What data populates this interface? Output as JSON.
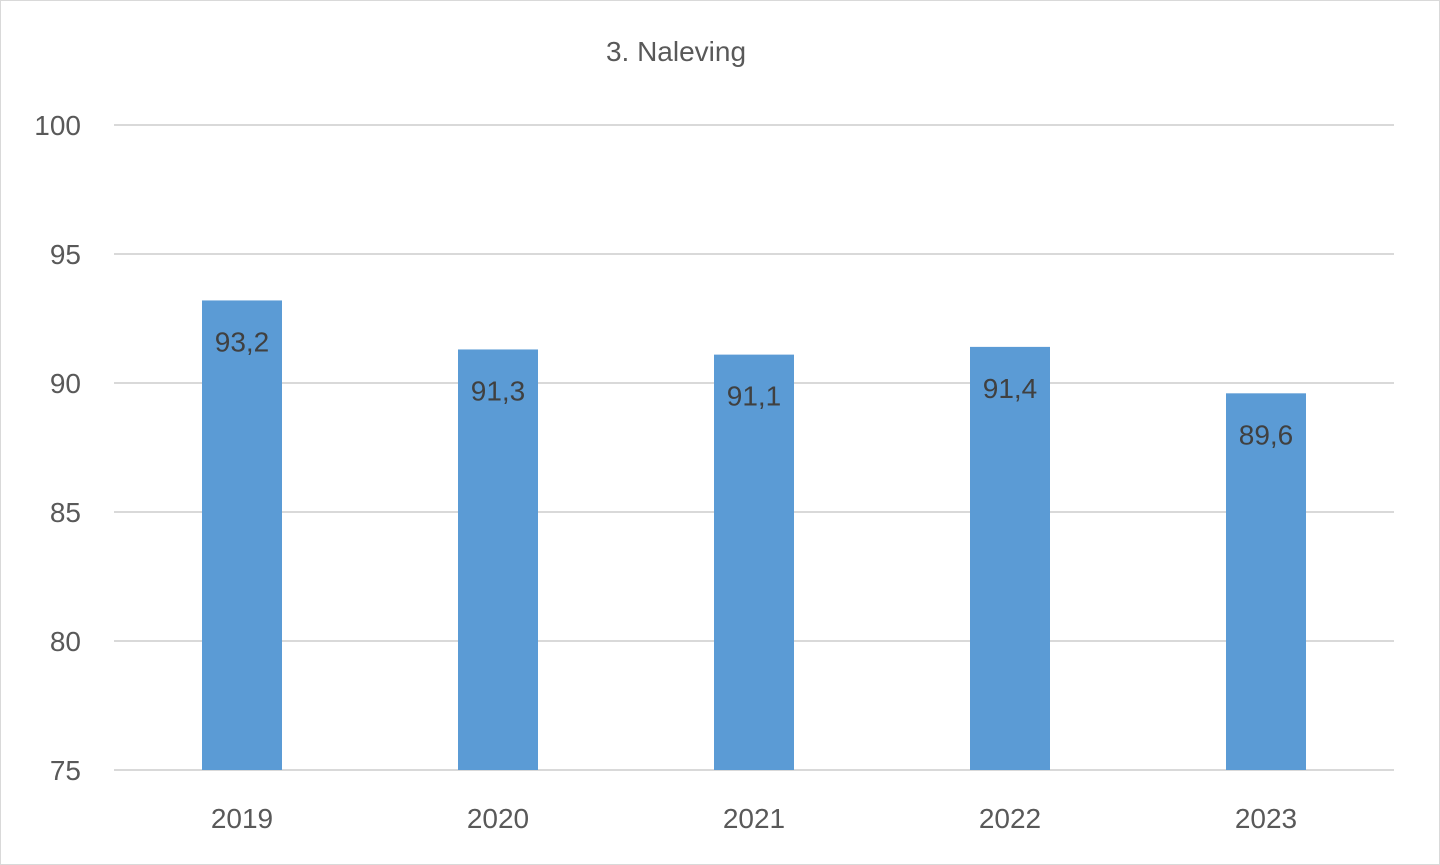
{
  "chart_data": {
    "type": "bar",
    "title": "3. Naleving",
    "categories": [
      "2019",
      "2020",
      "2021",
      "2022",
      "2023"
    ],
    "values": [
      93.2,
      91.3,
      91.1,
      91.4,
      89.6
    ],
    "value_labels": [
      "93,2",
      "91,3",
      "91,1",
      "91,4",
      "89,6"
    ],
    "ylim": [
      75,
      100
    ],
    "yticks": [
      75,
      80,
      85,
      90,
      95,
      100
    ],
    "xlabel": "",
    "ylabel": "",
    "grid": true,
    "legend": "none",
    "bar_color": "#5b9bd5",
    "grid_color": "#d9d9d9"
  }
}
